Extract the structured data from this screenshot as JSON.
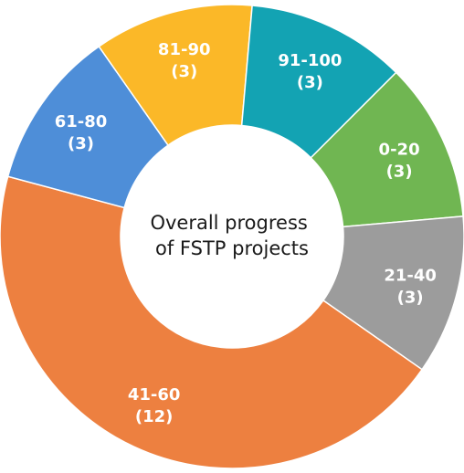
{
  "chart_data": {
    "type": "pie",
    "title": "Overall progress of FSTP projects",
    "categories": [
      "0-20",
      "21-40",
      "41-60",
      "61-80",
      "81-90",
      "91-100"
    ],
    "values": [
      3,
      3,
      12,
      3,
      3,
      3
    ],
    "colors": [
      "#70b652",
      "#9c9c9c",
      "#ed8040",
      "#4e8ed8",
      "#fbb828",
      "#13a3b3"
    ],
    "value_labels": [
      "(3)",
      "(3)",
      "(12)",
      "(3)",
      "(3)",
      "(3)"
    ],
    "center_title_lines": [
      "Overall progress",
      "of FSTP projects"
    ],
    "legend": "none"
  }
}
